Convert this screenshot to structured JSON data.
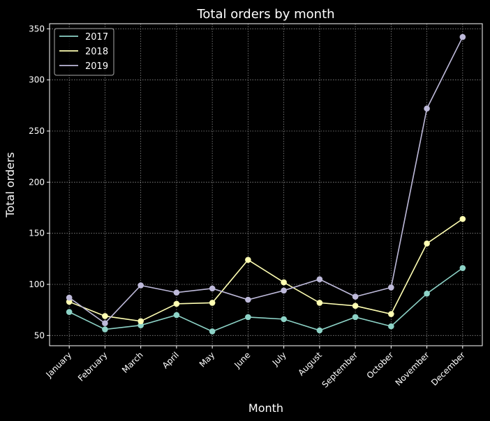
{
  "chart_data": {
    "type": "line",
    "title": "Total orders by month",
    "xlabel": "Month",
    "ylabel": "Total orders",
    "categories": [
      "January",
      "February",
      "March",
      "April",
      "May",
      "June",
      "July",
      "August",
      "September",
      "October",
      "November",
      "December"
    ],
    "ylim": [
      40,
      355
    ],
    "yticks": [
      50,
      100,
      150,
      200,
      250,
      300,
      350
    ],
    "grid": true,
    "legend_position": "upper-left",
    "series": [
      {
        "name": "2017",
        "color": "#8dd3c7",
        "values": [
          73,
          56,
          60,
          70,
          54,
          68,
          66,
          55,
          68,
          59,
          91,
          116
        ]
      },
      {
        "name": "2018",
        "color": "#ffffb3",
        "values": [
          83,
          69,
          64,
          81,
          82,
          124,
          102,
          82,
          79,
          71,
          140,
          164
        ]
      },
      {
        "name": "2019",
        "color": "#bebada",
        "values": [
          87,
          62,
          99,
          92,
          96,
          85,
          94,
          105,
          88,
          97,
          272,
          342
        ]
      }
    ]
  }
}
